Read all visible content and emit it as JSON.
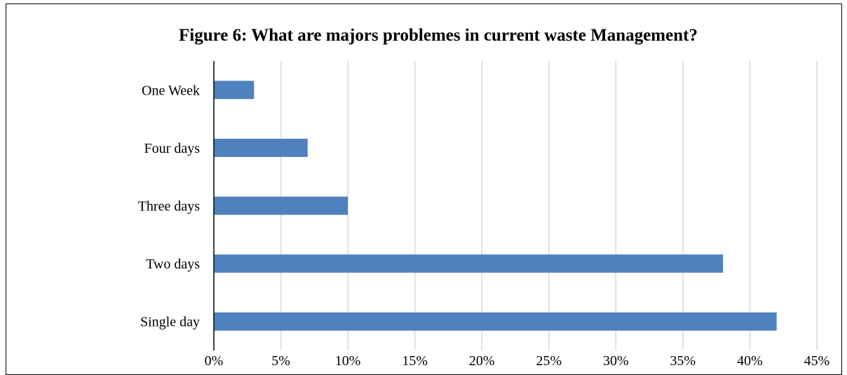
{
  "chart_data": {
    "type": "bar",
    "orientation": "horizontal",
    "title": "Figure 6: What are majors problemes in current waste Management?",
    "xlabel": "",
    "ylabel": "",
    "categories": [
      "One Week",
      "Four days",
      "Three days",
      "Two days",
      "Single day"
    ],
    "values": [
      3,
      7,
      10,
      38,
      42
    ],
    "value_unit": "%",
    "xlim": [
      0,
      45
    ],
    "x_ticks": [
      "0%",
      "5%",
      "10%",
      "15%",
      "20%",
      "25%",
      "30%",
      "35%",
      "40%",
      "45%"
    ],
    "grid": true,
    "legend": "none",
    "bar_color": "#4f81bd",
    "grid_color": "#d9d9d9"
  }
}
